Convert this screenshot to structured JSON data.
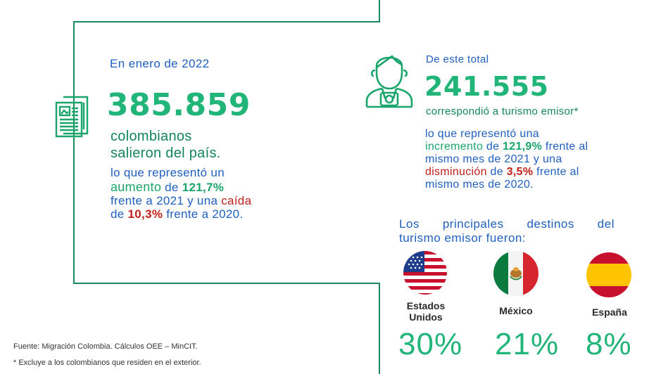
{
  "left": {
    "intro": "En enero de 2022",
    "number": "385.859",
    "subtitle_line1": "colombianos",
    "subtitle_line2": "salieron del país.",
    "p1": "lo que representó un",
    "p2a": "aumento",
    "p2b": " de ",
    "p2c": "121,7%",
    "p3a": "frente a 2021 y una ",
    "p3b": "caída",
    "p4a": "de ",
    "p4b": "10,3%",
    "p4c": " frente a 2020."
  },
  "right": {
    "intro": "De este total",
    "number": "241.555",
    "subtitle": "correspondió a turismo emisor*",
    "p1": "lo que representó una",
    "p2a": "incremento",
    "p2b": " de ",
    "p2c": "121,9%",
    "p2d": " frente al",
    "p3": "mismo mes de 2021 y una",
    "p4a": "disminución",
    "p4b": " de ",
    "p4c": "3,5%",
    "p4d": " frente al",
    "p5": "mismo mes de 2020."
  },
  "destinations": {
    "heading_line1": "Los principales destinos del",
    "heading_line2": "turismo emisor fueron:",
    "items": [
      {
        "name_line1": "Estados",
        "name_line2": "Unidos",
        "percent": "30%",
        "icon": "usa-flag-icon"
      },
      {
        "name_line1": "México",
        "name_line2": "",
        "percent": "21%",
        "icon": "mexico-flag-icon"
      },
      {
        "name_line1": "España",
        "name_line2": "",
        "percent": "8%",
        "icon": "spain-flag-icon"
      }
    ]
  },
  "footer": {
    "source": "Fuente: Migración Colombia. Cálculos OEE – MinCIT.",
    "note": "* Excluye a los colombianos que residen en el exterior."
  },
  "colors": {
    "accent_green": "#22b57a",
    "text_blue": "#1f5fbf",
    "highlight_red": "#c0201a",
    "frame_green": "#1a8a5c"
  }
}
